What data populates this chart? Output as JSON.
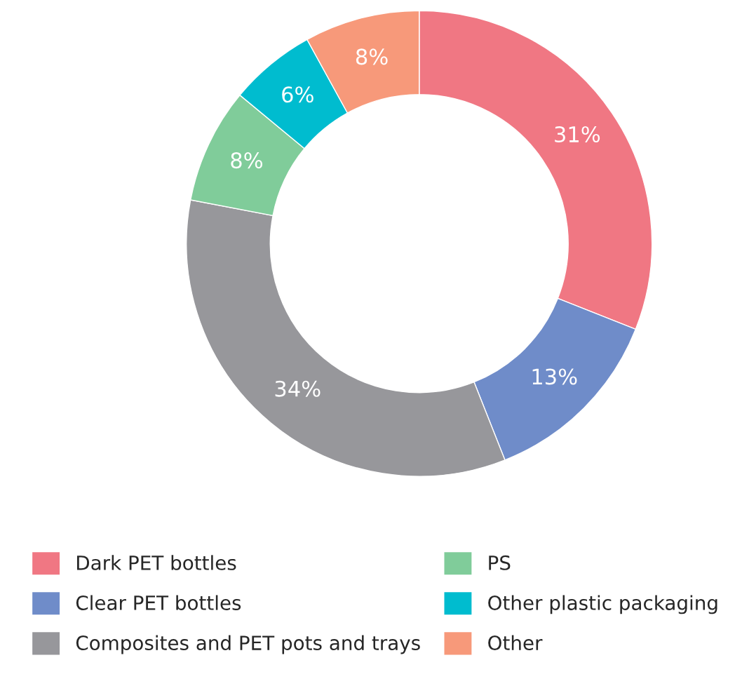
{
  "chart_data": {
    "type": "donut",
    "categories": [
      "Dark PET bottles",
      "Clear PET bottles",
      "Composites and PET pots and trays",
      "PS",
      "Other plastic packaging",
      "Other"
    ],
    "values": [
      31,
      13,
      34,
      8,
      6,
      8
    ],
    "colors": [
      "#f07783",
      "#6f8cc9",
      "#97979b",
      "#80cc9a",
      "#00bccf",
      "#f7997a"
    ],
    "value_labels": [
      "31%",
      "13%",
      "34%",
      "8%",
      "6%",
      "8%"
    ],
    "legend": "bottom"
  }
}
